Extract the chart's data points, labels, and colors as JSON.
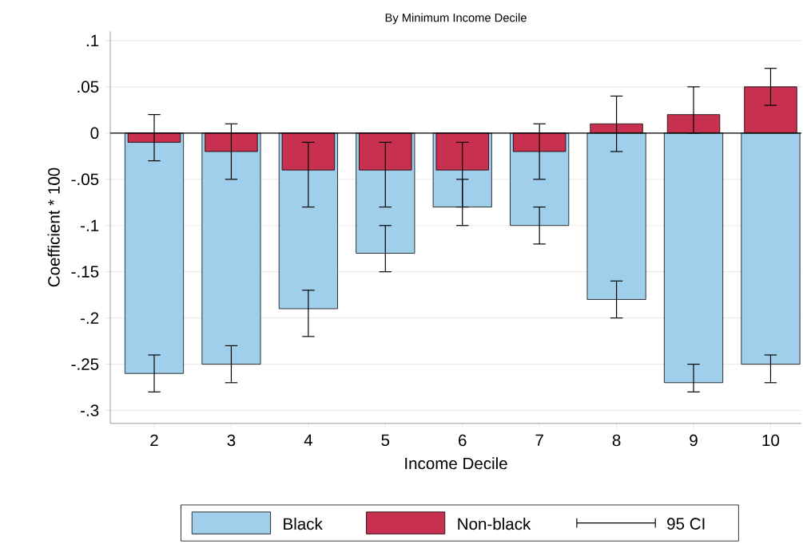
{
  "chart_data": {
    "type": "bar",
    "title": "By Minimum Income Decile",
    "xlabel": "Income Decile",
    "ylabel": "Coefficient * 100",
    "categories": [
      "2",
      "3",
      "4",
      "5",
      "6",
      "7",
      "8",
      "9",
      "10"
    ],
    "series": [
      {
        "name": "Black",
        "color": "#9fcfeb",
        "values": [
          -0.26,
          -0.25,
          -0.19,
          -0.13,
          -0.08,
          -0.1,
          -0.18,
          -0.27,
          -0.25
        ],
        "errors": [
          [
            -0.28,
            -0.24
          ],
          [
            -0.27,
            -0.23
          ],
          [
            -0.22,
            -0.17
          ],
          [
            -0.15,
            -0.1
          ],
          [
            -0.1,
            -0.05
          ],
          [
            -0.12,
            -0.08
          ],
          [
            -0.2,
            -0.16
          ],
          [
            -0.28,
            -0.25
          ],
          [
            -0.27,
            -0.24
          ]
        ]
      },
      {
        "name": "Non-black",
        "color": "#c7304f",
        "values": [
          -0.01,
          -0.02,
          -0.04,
          -0.04,
          -0.04,
          -0.02,
          0.01,
          0.02,
          0.05
        ],
        "errors": [
          [
            -0.03,
            0.02
          ],
          [
            -0.05,
            0.01
          ],
          [
            -0.08,
            -0.01
          ],
          [
            -0.08,
            -0.01
          ],
          [
            -0.08,
            -0.01
          ],
          [
            -0.05,
            0.01
          ],
          [
            -0.02,
            0.04
          ],
          [
            0,
            0.05
          ],
          [
            0.03,
            0.07
          ]
        ]
      }
    ],
    "ylim": [
      -0.314,
      0.11
    ],
    "yticks": [
      {
        "value": 0.1,
        "label": ".1"
      },
      {
        "value": 0.05,
        "label": ".05"
      },
      0,
      {
        "value": -0.05,
        "label": "-.05"
      },
      {
        "value": -0.1,
        "label": "-.1"
      },
      {
        "value": -0.15,
        "label": "-.15"
      },
      {
        "value": -0.2,
        "label": "-.2"
      },
      {
        "value": -0.25,
        "label": "-.25"
      },
      {
        "value": -0.3,
        "label": "-.3"
      }
    ],
    "grid": "y",
    "legend": "bottom",
    "ref_lines": [
      {
        "axis": "y",
        "value": 0,
        "color": "#000000"
      }
    ],
    "annotations": [
      "95 CI"
    ]
  }
}
